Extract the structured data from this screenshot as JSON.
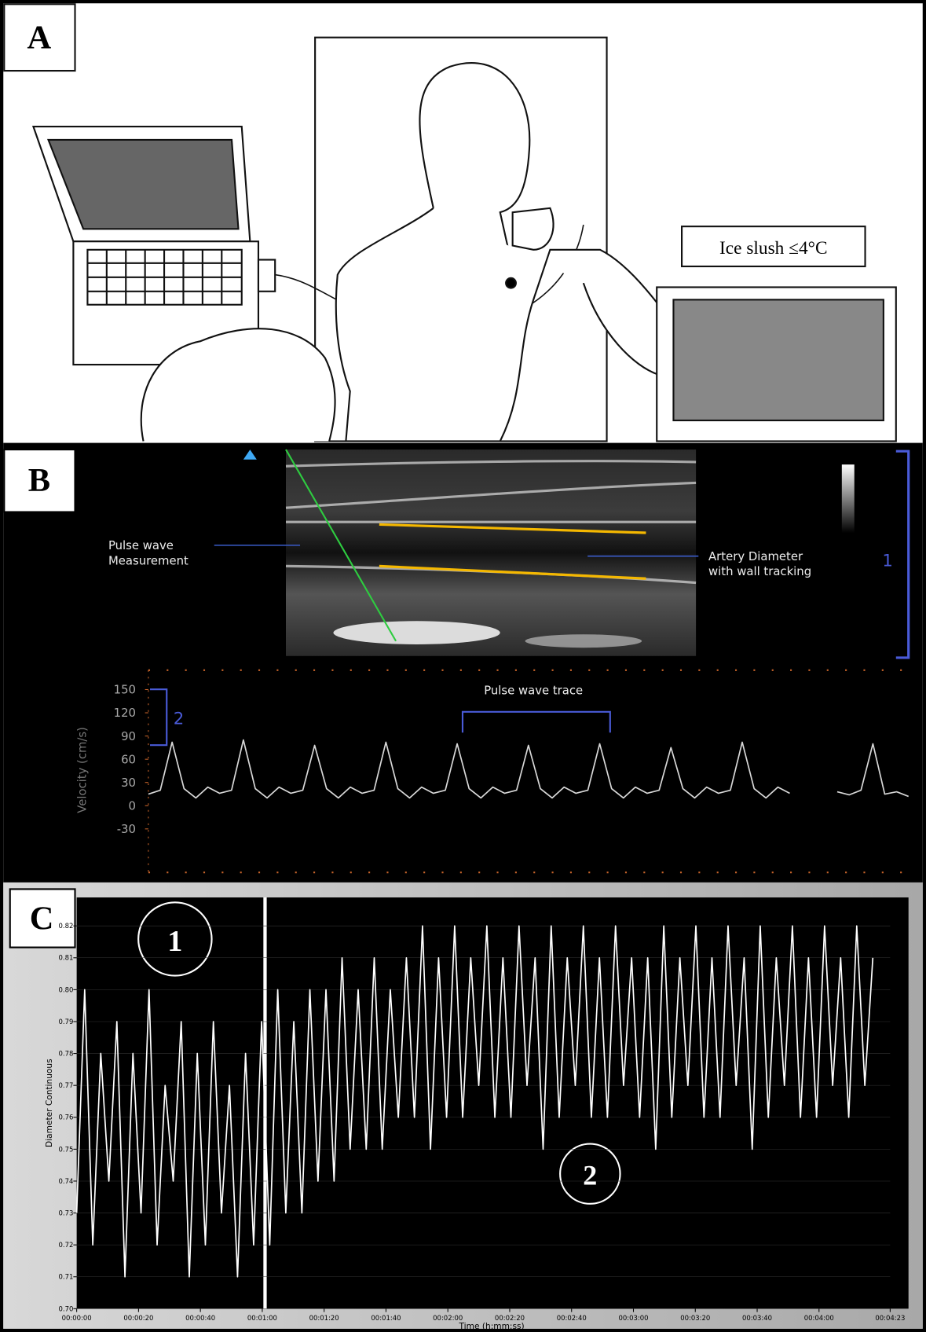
{
  "panels": {
    "a": {
      "label": "A",
      "ice_label": "Ice slush ≤4°C"
    },
    "b": {
      "label": "B",
      "pulse_label": [
        "Pulse wave",
        "Measurement"
      ],
      "artery_label": [
        "Artery Diameter",
        "with wall tracking"
      ],
      "bracket_label": "1"
    },
    "c": {
      "label": "C",
      "markers": [
        "1",
        "2"
      ]
    }
  },
  "chart_data": [
    {
      "type": "line",
      "ylabel": "Velocity (cm/s)",
      "annotation": "Pulse wave trace",
      "bracket_label": "2",
      "color": "#d8d8d8",
      "ylim": [
        -40,
        160
      ],
      "yticks": [
        150,
        120,
        90,
        60,
        30,
        0,
        -30
      ],
      "values": [
        15,
        20,
        82,
        22,
        10,
        24,
        16,
        20,
        85,
        22,
        10,
        24,
        16,
        20,
        78,
        22,
        10,
        24,
        16,
        20,
        82,
        22,
        10,
        24,
        16,
        20,
        80,
        22,
        10,
        24,
        16,
        20,
        78,
        22,
        10,
        24,
        16,
        20,
        80,
        22,
        10,
        24,
        16,
        20,
        75,
        22,
        10,
        24,
        16,
        20,
        82,
        22,
        10,
        24,
        16,
        null,
        null,
        null,
        18,
        14,
        20,
        80,
        15,
        18,
        12
      ]
    },
    {
      "type": "line",
      "ylabel": "Diameter Continuous",
      "xlabel": "Time (h:mm:ss)",
      "color": "#ffffff",
      "ylim": [
        0.7,
        0.825
      ],
      "yticks": [
        {
          "value": 0.7,
          "label": "0.70"
        },
        0.71,
        0.72,
        0.73,
        0.74,
        0.75,
        0.76,
        0.77,
        0.78,
        0.79,
        {
          "value": 0.8,
          "label": "0.80"
        },
        0.81,
        0.82
      ],
      "xlim": [
        0,
        263
      ],
      "xticks": [
        {
          "value": 0,
          "label": "00:00:00"
        },
        {
          "value": 20,
          "label": "00:00:20"
        },
        {
          "value": 40,
          "label": "00:00:40"
        },
        {
          "value": 60,
          "label": "00:01:00"
        },
        {
          "value": 80,
          "label": "00:01:20"
        },
        {
          "value": 100,
          "label": "00:01:40"
        },
        {
          "value": 120,
          "label": "00:02:00"
        },
        {
          "value": 140,
          "label": "00:02:20"
        },
        {
          "value": 160,
          "label": "00:02:40"
        },
        {
          "value": 180,
          "label": "00:03:00"
        },
        {
          "value": 200,
          "label": "00:03:20"
        },
        {
          "value": 220,
          "label": "00:03:40"
        },
        {
          "value": 240,
          "label": "00:04:00"
        },
        {
          "value": 263,
          "label": "00:04:23"
        }
      ],
      "x": [
        0,
        2.6,
        5.2,
        7.8,
        10.4,
        13,
        15.6,
        18.2,
        20.8,
        23.4,
        26,
        28.6,
        31.2,
        33.8,
        36.4,
        39,
        41.6,
        44.2,
        46.8,
        49.4,
        52,
        54.6,
        57.2,
        59.8,
        62.4,
        65,
        67.6,
        70.2,
        72.8,
        75.4,
        78,
        80.6,
        83.2,
        85.8,
        88.4,
        91,
        93.6,
        96.2,
        98.8,
        101.4,
        104,
        106.6,
        109.2,
        111.8,
        114.4,
        117,
        119.6,
        122.2,
        124.8,
        127.4,
        130,
        132.6,
        135.2,
        137.8,
        140.4,
        143,
        145.6,
        148.2,
        150.8,
        153.4,
        156,
        158.6,
        161.2,
        163.8,
        166.4,
        169,
        171.6,
        174.2,
        176.8,
        179.4,
        182,
        184.6,
        187.2,
        189.8,
        192.4,
        195,
        197.6,
        200.2,
        202.8,
        205.4,
        208,
        210.6,
        213.2,
        215.8,
        218.4,
        221,
        223.6,
        226.2,
        228.8,
        231.4,
        234,
        236.6,
        239.2,
        241.8,
        244.4,
        247,
        249.6,
        252.2,
        254.8,
        257.4
      ],
      "values": [
        0.73,
        0.8,
        0.72,
        0.78,
        0.74,
        0.79,
        0.71,
        0.78,
        0.73,
        0.8,
        0.72,
        0.77,
        0.74,
        0.79,
        0.71,
        0.78,
        0.72,
        0.79,
        0.73,
        0.77,
        0.71,
        0.78,
        0.72,
        0.79,
        0.72,
        0.8,
        0.73,
        0.79,
        0.73,
        0.8,
        0.74,
        0.8,
        0.74,
        0.81,
        0.75,
        0.8,
        0.75,
        0.81,
        0.75,
        0.8,
        0.76,
        0.81,
        0.76,
        0.82,
        0.75,
        0.81,
        0.76,
        0.82,
        0.76,
        0.81,
        0.77,
        0.82,
        0.76,
        0.81,
        0.76,
        0.82,
        0.77,
        0.81,
        0.75,
        0.82,
        0.76,
        0.81,
        0.77,
        0.82,
        0.76,
        0.81,
        0.76,
        0.82,
        0.77,
        0.81,
        0.76,
        0.81,
        0.75,
        0.82,
        0.76,
        0.81,
        0.77,
        0.82,
        0.76,
        0.81,
        0.76,
        0.82,
        0.77,
        0.81,
        0.75,
        0.82,
        0.76,
        0.81,
        0.77,
        0.82,
        0.76,
        0.81,
        0.76,
        0.82,
        0.77,
        0.81,
        0.76,
        0.82,
        0.77,
        0.81
      ]
    }
  ]
}
